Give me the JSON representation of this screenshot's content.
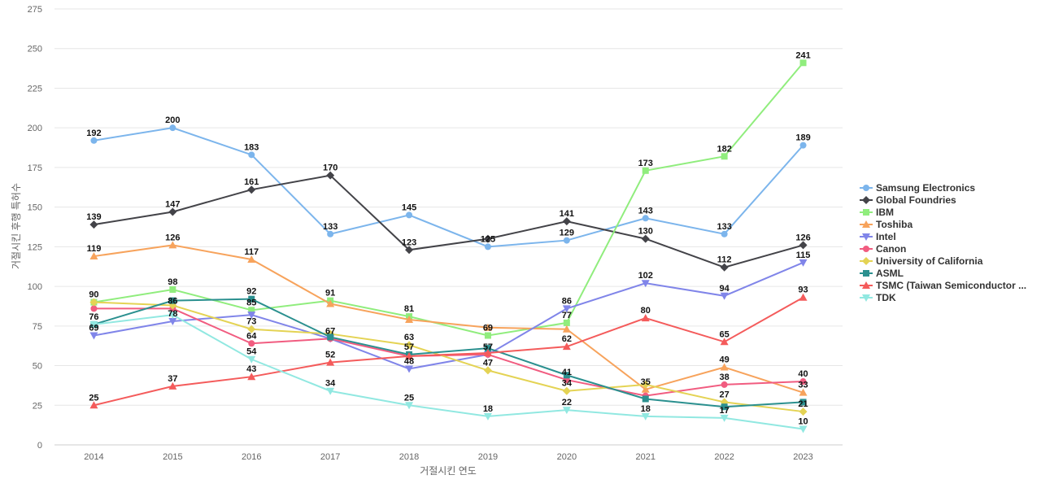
{
  "chart_data": {
    "type": "line",
    "title": "",
    "xlabel": "거절시킨 연도",
    "ylabel": "거절시킨 후행 특허수",
    "categories": [
      "2014",
      "2015",
      "2016",
      "2017",
      "2018",
      "2019",
      "2020",
      "2021",
      "2022",
      "2023"
    ],
    "ylim": [
      0,
      275
    ],
    "yticks": [
      0,
      25,
      50,
      75,
      100,
      125,
      150,
      175,
      200,
      225,
      250,
      275
    ],
    "grid": true,
    "legend_position": "right",
    "series": [
      {
        "name": "Samsung Electronics",
        "color": "#7cb5ec",
        "marker": "circle",
        "values": [
          192,
          200,
          183,
          133,
          145,
          125,
          129,
          143,
          133,
          189
        ]
      },
      {
        "name": "Global Foundries",
        "color": "#434348",
        "marker": "diamond",
        "values": [
          139,
          147,
          161,
          170,
          123,
          130,
          141,
          130,
          112,
          126
        ]
      },
      {
        "name": "IBM",
        "color": "#90ed7d",
        "marker": "square",
        "values": [
          90,
          98,
          85,
          91,
          81,
          69,
          77,
          173,
          182,
          241
        ]
      },
      {
        "name": "Toshiba",
        "color": "#f7a35c",
        "marker": "triangle",
        "values": [
          119,
          126,
          117,
          89,
          79,
          74,
          73,
          35,
          49,
          33
        ]
      },
      {
        "name": "Intel",
        "color": "#8085e9",
        "marker": "triangle-down",
        "values": [
          69,
          78,
          82,
          67,
          48,
          57,
          86,
          102,
          94,
          115
        ]
      },
      {
        "name": "Canon",
        "color": "#f15c80",
        "marker": "circle",
        "values": [
          86,
          86,
          64,
          67,
          56,
          57,
          41,
          31,
          38,
          40
        ]
      },
      {
        "name": "University of California",
        "color": "#e4d354",
        "marker": "diamond",
        "values": [
          90,
          88,
          73,
          70,
          63,
          47,
          34,
          38,
          27,
          21
        ]
      },
      {
        "name": "ASML",
        "color": "#2b908f",
        "marker": "square",
        "values": [
          76,
          91,
          92,
          68,
          57,
          61,
          44,
          29,
          24,
          27
        ]
      },
      {
        "name": "TSMC (Taiwan Semiconductor ...",
        "color": "#f45b5b",
        "marker": "triangle",
        "values": [
          25,
          37,
          43,
          52,
          56,
          58,
          62,
          80,
          65,
          93
        ]
      },
      {
        "name": "TDK",
        "color": "#91e8e1",
        "marker": "triangle-down",
        "values": [
          76,
          82,
          54,
          34,
          25,
          18,
          22,
          18,
          17,
          10
        ]
      }
    ],
    "data_labels": [
      {
        "x": "2014",
        "text": "192",
        "value": 192
      },
      {
        "x": "2014",
        "text": "139",
        "value": 139
      },
      {
        "x": "2014",
        "text": "119",
        "value": 119
      },
      {
        "x": "2014",
        "text": "90",
        "value": 90
      },
      {
        "x": "2014",
        "text": "76",
        "value": 76
      },
      {
        "x": "2014",
        "text": "69",
        "value": 69
      },
      {
        "x": "2014",
        "text": "25",
        "value": 25
      },
      {
        "x": "2015",
        "text": "200",
        "value": 200
      },
      {
        "x": "2015",
        "text": "147",
        "value": 147
      },
      {
        "x": "2015",
        "text": "126",
        "value": 126
      },
      {
        "x": "2015",
        "text": "98",
        "value": 98
      },
      {
        "x": "2015",
        "text": "86",
        "value": 86
      },
      {
        "x": "2015",
        "text": "78",
        "value": 78
      },
      {
        "x": "2015",
        "text": "37",
        "value": 37
      },
      {
        "x": "2016",
        "text": "183",
        "value": 183
      },
      {
        "x": "2016",
        "text": "161",
        "value": 161
      },
      {
        "x": "2016",
        "text": "117",
        "value": 117
      },
      {
        "x": "2016",
        "text": "92",
        "value": 92
      },
      {
        "x": "2016",
        "text": "85",
        "value": 85
      },
      {
        "x": "2016",
        "text": "73",
        "value": 73
      },
      {
        "x": "2016",
        "text": "64",
        "value": 64
      },
      {
        "x": "2016",
        "text": "54",
        "value": 54
      },
      {
        "x": "2016",
        "text": "43",
        "value": 43
      },
      {
        "x": "2017",
        "text": "170",
        "value": 170
      },
      {
        "x": "2017",
        "text": "133",
        "value": 133
      },
      {
        "x": "2017",
        "text": "91",
        "value": 91
      },
      {
        "x": "2017",
        "text": "67",
        "value": 67
      },
      {
        "x": "2017",
        "text": "52",
        "value": 52
      },
      {
        "x": "2017",
        "text": "34",
        "value": 34
      },
      {
        "x": "2018",
        "text": "145",
        "value": 145
      },
      {
        "x": "2018",
        "text": "123",
        "value": 123
      },
      {
        "x": "2018",
        "text": "81",
        "value": 81
      },
      {
        "x": "2018",
        "text": "63",
        "value": 63
      },
      {
        "x": "2018",
        "text": "57",
        "value": 57
      },
      {
        "x": "2018",
        "text": "48",
        "value": 48
      },
      {
        "x": "2018",
        "text": "25",
        "value": 25
      },
      {
        "x": "2019",
        "text": "125",
        "value": 125
      },
      {
        "x": "2019",
        "text": "69",
        "value": 69
      },
      {
        "x": "2019",
        "text": "57",
        "value": 57
      },
      {
        "x": "2019",
        "text": "47",
        "value": 47
      },
      {
        "x": "2019",
        "text": "18",
        "value": 18
      },
      {
        "x": "2020",
        "text": "141",
        "value": 141
      },
      {
        "x": "2020",
        "text": "129",
        "value": 129
      },
      {
        "x": "2020",
        "text": "86",
        "value": 86
      },
      {
        "x": "2020",
        "text": "77",
        "value": 77
      },
      {
        "x": "2020",
        "text": "62",
        "value": 62
      },
      {
        "x": "2020",
        "text": "41",
        "value": 41
      },
      {
        "x": "2020",
        "text": "34",
        "value": 34
      },
      {
        "x": "2020",
        "text": "22",
        "value": 22
      },
      {
        "x": "2021",
        "text": "173",
        "value": 173
      },
      {
        "x": "2021",
        "text": "143",
        "value": 143
      },
      {
        "x": "2021",
        "text": "130",
        "value": 130
      },
      {
        "x": "2021",
        "text": "102",
        "value": 102
      },
      {
        "x": "2021",
        "text": "80",
        "value": 80
      },
      {
        "x": "2021",
        "text": "35",
        "value": 35
      },
      {
        "x": "2021",
        "text": "18",
        "value": 18
      },
      {
        "x": "2022",
        "text": "182",
        "value": 182
      },
      {
        "x": "2022",
        "text": "133",
        "value": 133
      },
      {
        "x": "2022",
        "text": "112",
        "value": 112
      },
      {
        "x": "2022",
        "text": "94",
        "value": 94
      },
      {
        "x": "2022",
        "text": "65",
        "value": 65
      },
      {
        "x": "2022",
        "text": "49",
        "value": 49
      },
      {
        "x": "2022",
        "text": "38",
        "value": 38
      },
      {
        "x": "2022",
        "text": "27",
        "value": 27
      },
      {
        "x": "2022",
        "text": "17",
        "value": 17
      },
      {
        "x": "2023",
        "text": "241",
        "value": 241
      },
      {
        "x": "2023",
        "text": "189",
        "value": 189
      },
      {
        "x": "2023",
        "text": "126",
        "value": 126
      },
      {
        "x": "2023",
        "text": "115",
        "value": 115
      },
      {
        "x": "2023",
        "text": "93",
        "value": 93
      },
      {
        "x": "2023",
        "text": "40",
        "value": 40
      },
      {
        "x": "2023",
        "text": "33",
        "value": 33
      },
      {
        "x": "2023",
        "text": "21",
        "value": 21
      },
      {
        "x": "2023",
        "text": "10",
        "value": 10
      }
    ]
  }
}
